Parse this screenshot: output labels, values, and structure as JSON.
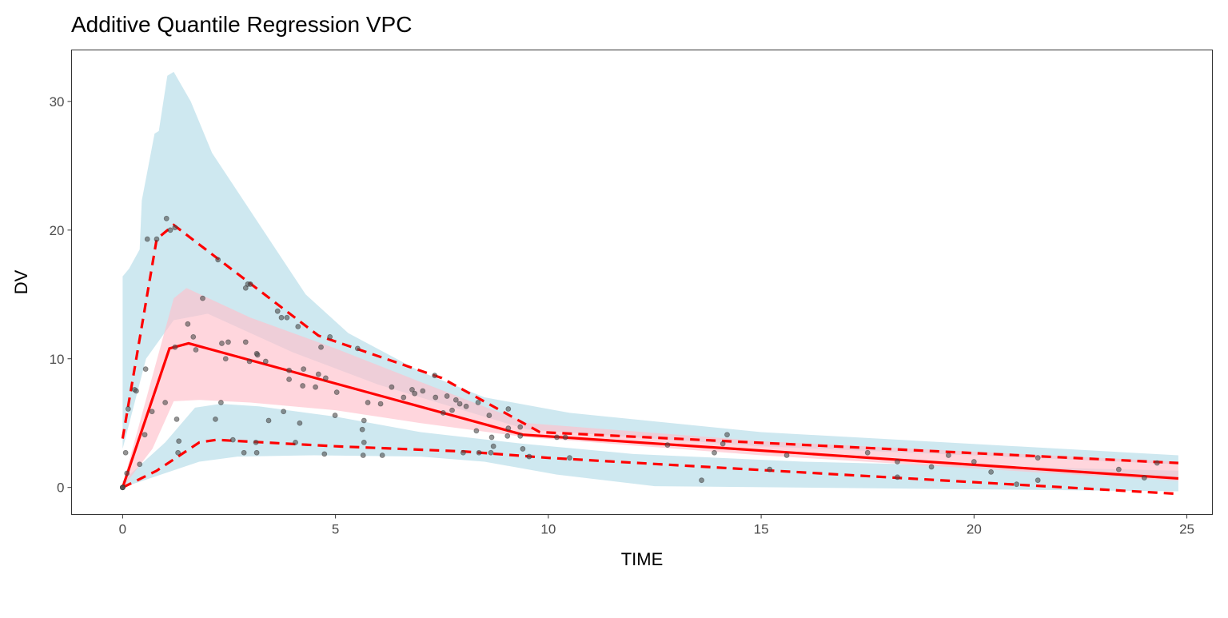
{
  "chart_data": {
    "type": "line",
    "title": "Additive Quantile Regression VPC",
    "xlabel": "TIME",
    "ylabel": "DV",
    "xlim": [
      -1.2,
      25.6
    ],
    "ylim": [
      -2.1,
      34
    ],
    "x_ticks": [
      0,
      5,
      10,
      15,
      20,
      25
    ],
    "y_ticks": [
      0,
      10,
      20,
      30
    ],
    "grid": false,
    "colors": {
      "band_outer": "#ADD8E6",
      "band_median": "#FFC0CB",
      "lines": "#FF0000",
      "points": "#4d4d4d"
    },
    "bands": [
      {
        "role": "upper-percentile",
        "color": "#ADD8E6",
        "upper": [
          [
            0,
            16.4
          ],
          [
            0.15,
            17
          ],
          [
            0.4,
            18.5
          ],
          [
            0.45,
            22.3
          ],
          [
            0.75,
            27.5
          ],
          [
            0.85,
            27.7
          ],
          [
            1.05,
            32
          ],
          [
            1.2,
            32.3
          ],
          [
            1.6,
            30
          ],
          [
            2.1,
            26
          ],
          [
            3.1,
            21
          ],
          [
            3.6,
            18.5
          ],
          [
            4.3,
            15
          ],
          [
            5.3,
            12
          ],
          [
            7,
            9
          ],
          [
            8.5,
            7
          ],
          [
            10.5,
            5.8
          ],
          [
            15,
            4.3
          ],
          [
            24.8,
            2.5
          ]
        ],
        "lower": [
          [
            0,
            3
          ],
          [
            0.55,
            10
          ],
          [
            1.2,
            13
          ],
          [
            2,
            13.5
          ],
          [
            4,
            10.5
          ],
          [
            6,
            8
          ],
          [
            7.5,
            6.5
          ],
          [
            9.5,
            4.5
          ],
          [
            15,
            3.2
          ],
          [
            24.8,
            1.8
          ]
        ]
      },
      {
        "role": "lower-percentile",
        "color": "#ADD8E6",
        "upper": [
          [
            0,
            0.5
          ],
          [
            1.0,
            3.5
          ],
          [
            1.7,
            6.2
          ],
          [
            2.3,
            6.5
          ],
          [
            3.2,
            6.3
          ],
          [
            5,
            5.5
          ],
          [
            7,
            4.3
          ],
          [
            9.4,
            3.4
          ],
          [
            12,
            2.6
          ],
          [
            16,
            2.0
          ],
          [
            24.8,
            1.3
          ]
        ],
        "lower": [
          [
            0,
            0
          ],
          [
            1.8,
            2.0
          ],
          [
            2.7,
            2.4
          ],
          [
            4.5,
            2.5
          ],
          [
            7,
            2.4
          ],
          [
            8.5,
            2.0
          ],
          [
            10.2,
            1.0
          ],
          [
            12.5,
            0.1
          ],
          [
            24.8,
            -0.3
          ]
        ]
      },
      {
        "role": "median",
        "color": "#FFC0CB",
        "upper": [
          [
            0,
            0.2
          ],
          [
            1.2,
            14.7
          ],
          [
            1.5,
            15.5
          ],
          [
            3,
            13.2
          ],
          [
            5,
            10.8
          ],
          [
            7,
            8.2
          ],
          [
            9.5,
            5.0
          ],
          [
            15,
            3.6
          ],
          [
            24.8,
            2.0
          ]
        ],
        "lower": [
          [
            0,
            0
          ],
          [
            0.7,
            3
          ],
          [
            1.2,
            6.7
          ],
          [
            1.8,
            6.8
          ],
          [
            3,
            6.6
          ],
          [
            5,
            6.0
          ],
          [
            7,
            5.0
          ],
          [
            9.5,
            3.9
          ],
          [
            15,
            2.5
          ],
          [
            24.8,
            0.5
          ]
        ]
      }
    ],
    "series": [
      {
        "role": "median",
        "style": "solid",
        "points": [
          [
            0,
            0
          ],
          [
            1.1,
            10.8
          ],
          [
            1.55,
            11.2
          ],
          [
            9.4,
            4.1
          ],
          [
            24.8,
            0.7
          ]
        ]
      },
      {
        "role": "upper",
        "style": "dashed",
        "points": [
          [
            0,
            3.8
          ],
          [
            0.8,
            19.3
          ],
          [
            1.2,
            20.4
          ],
          [
            4.6,
            11.8
          ],
          [
            7.5,
            8.5
          ],
          [
            9.8,
            4.3
          ],
          [
            24.8,
            1.9
          ]
        ]
      },
      {
        "role": "lower",
        "style": "dashed",
        "points": [
          [
            0,
            0
          ],
          [
            0.8,
            1.3
          ],
          [
            1.8,
            3.5
          ],
          [
            2.2,
            3.7
          ],
          [
            5,
            3.2
          ],
          [
            8,
            2.8
          ],
          [
            10,
            2.3
          ],
          [
            24.8,
            -0.5
          ]
        ]
      }
    ],
    "observed": [
      [
        0,
        0
      ],
      [
        0,
        0
      ],
      [
        0,
        0
      ],
      [
        0.07,
        2.7
      ],
      [
        0.1,
        1.1
      ],
      [
        0.13,
        6.1
      ],
      [
        0.28,
        7.6
      ],
      [
        0.32,
        7.5
      ],
      [
        0.4,
        1.8
      ],
      [
        0.54,
        9.2
      ],
      [
        0.52,
        4.1
      ],
      [
        0.58,
        19.3
      ],
      [
        0.8,
        19.3
      ],
      [
        0.69,
        5.9
      ],
      [
        1.03,
        20.9
      ],
      [
        1.12,
        20.0
      ],
      [
        1.23,
        20.2
      ],
      [
        1.0,
        6.6
      ],
      [
        1.23,
        10.9
      ],
      [
        1.27,
        5.3
      ],
      [
        1.32,
        3.6
      ],
      [
        1.3,
        2.7
      ],
      [
        1.53,
        12.7
      ],
      [
        1.66,
        11.7
      ],
      [
        1.72,
        10.7
      ],
      [
        1.88,
        14.7
      ],
      [
        2.18,
        5.3
      ],
      [
        2.24,
        17.7
      ],
      [
        2.31,
        6.6
      ],
      [
        2.33,
        11.2
      ],
      [
        2.42,
        10.0
      ],
      [
        2.48,
        11.3
      ],
      [
        2.59,
        3.7
      ],
      [
        2.85,
        2.7
      ],
      [
        2.89,
        11.3
      ],
      [
        2.89,
        15.5
      ],
      [
        2.94,
        15.8
      ],
      [
        3.0,
        15.8
      ],
      [
        2.98,
        9.8
      ],
      [
        3.15,
        10.4
      ],
      [
        3.17,
        10.3
      ],
      [
        3.13,
        3.5
      ],
      [
        3.15,
        2.7
      ],
      [
        3.36,
        9.8
      ],
      [
        3.43,
        5.2
      ],
      [
        3.64,
        13.7
      ],
      [
        3.73,
        13.2
      ],
      [
        3.78,
        5.9
      ],
      [
        3.86,
        13.2
      ],
      [
        3.91,
        9.1
      ],
      [
        3.91,
        8.4
      ],
      [
        4.06,
        3.5
      ],
      [
        4.12,
        12.5
      ],
      [
        4.16,
        5.0
      ],
      [
        4.23,
        7.9
      ],
      [
        4.25,
        9.2
      ],
      [
        4.53,
        7.8
      ],
      [
        4.6,
        8.8
      ],
      [
        4.66,
        10.9
      ],
      [
        4.74,
        2.6
      ],
      [
        4.77,
        8.5
      ],
      [
        4.87,
        11.7
      ],
      [
        5.03,
        7.4
      ],
      [
        4.99,
        5.6
      ],
      [
        5.52,
        10.8
      ],
      [
        5.63,
        4.5
      ],
      [
        5.67,
        5.2
      ],
      [
        5.67,
        3.5
      ],
      [
        5.65,
        2.5
      ],
      [
        5.76,
        6.6
      ],
      [
        6.06,
        6.5
      ],
      [
        6.1,
        2.5
      ],
      [
        6.32,
        7.8
      ],
      [
        6.6,
        7.0
      ],
      [
        6.8,
        7.6
      ],
      [
        6.86,
        7.3
      ],
      [
        7.05,
        7.5
      ],
      [
        7.33,
        8.7
      ],
      [
        7.35,
        7.0
      ],
      [
        7.53,
        5.8
      ],
      [
        7.62,
        7.1
      ],
      [
        7.74,
        6.0
      ],
      [
        7.83,
        6.8
      ],
      [
        7.92,
        6.5
      ],
      [
        8.07,
        6.3
      ],
      [
        8.0,
        2.7
      ],
      [
        8.31,
        4.4
      ],
      [
        8.35,
        6.6
      ],
      [
        8.37,
        2.7
      ],
      [
        8.61,
        5.6
      ],
      [
        8.67,
        3.9
      ],
      [
        8.65,
        2.7
      ],
      [
        8.71,
        3.2
      ],
      [
        9.06,
        6.1
      ],
      [
        9.04,
        4.0
      ],
      [
        9.06,
        4.6
      ],
      [
        9.34,
        4.7
      ],
      [
        9.34,
        4.0
      ],
      [
        9.4,
        3.0
      ],
      [
        9.55,
        2.4
      ],
      [
        10.2,
        3.9
      ],
      [
        10.4,
        3.9
      ],
      [
        10.5,
        2.3
      ],
      [
        12.8,
        3.3
      ],
      [
        13.6,
        0.56
      ],
      [
        13.9,
        2.7
      ],
      [
        14.1,
        3.4
      ],
      [
        14.2,
        4.1
      ],
      [
        15.2,
        1.4
      ],
      [
        15.6,
        2.5
      ],
      [
        17.5,
        2.7
      ],
      [
        18.2,
        2.0
      ],
      [
        18.2,
        0.8
      ],
      [
        19.0,
        1.6
      ],
      [
        19.4,
        2.5
      ],
      [
        20.0,
        2.0
      ],
      [
        20.4,
        1.2
      ],
      [
        21.0,
        0.25
      ],
      [
        21.5,
        2.3
      ],
      [
        21.5,
        0.56
      ],
      [
        23.4,
        1.4
      ],
      [
        24.0,
        0.75
      ],
      [
        24.3,
        1.9
      ]
    ]
  }
}
